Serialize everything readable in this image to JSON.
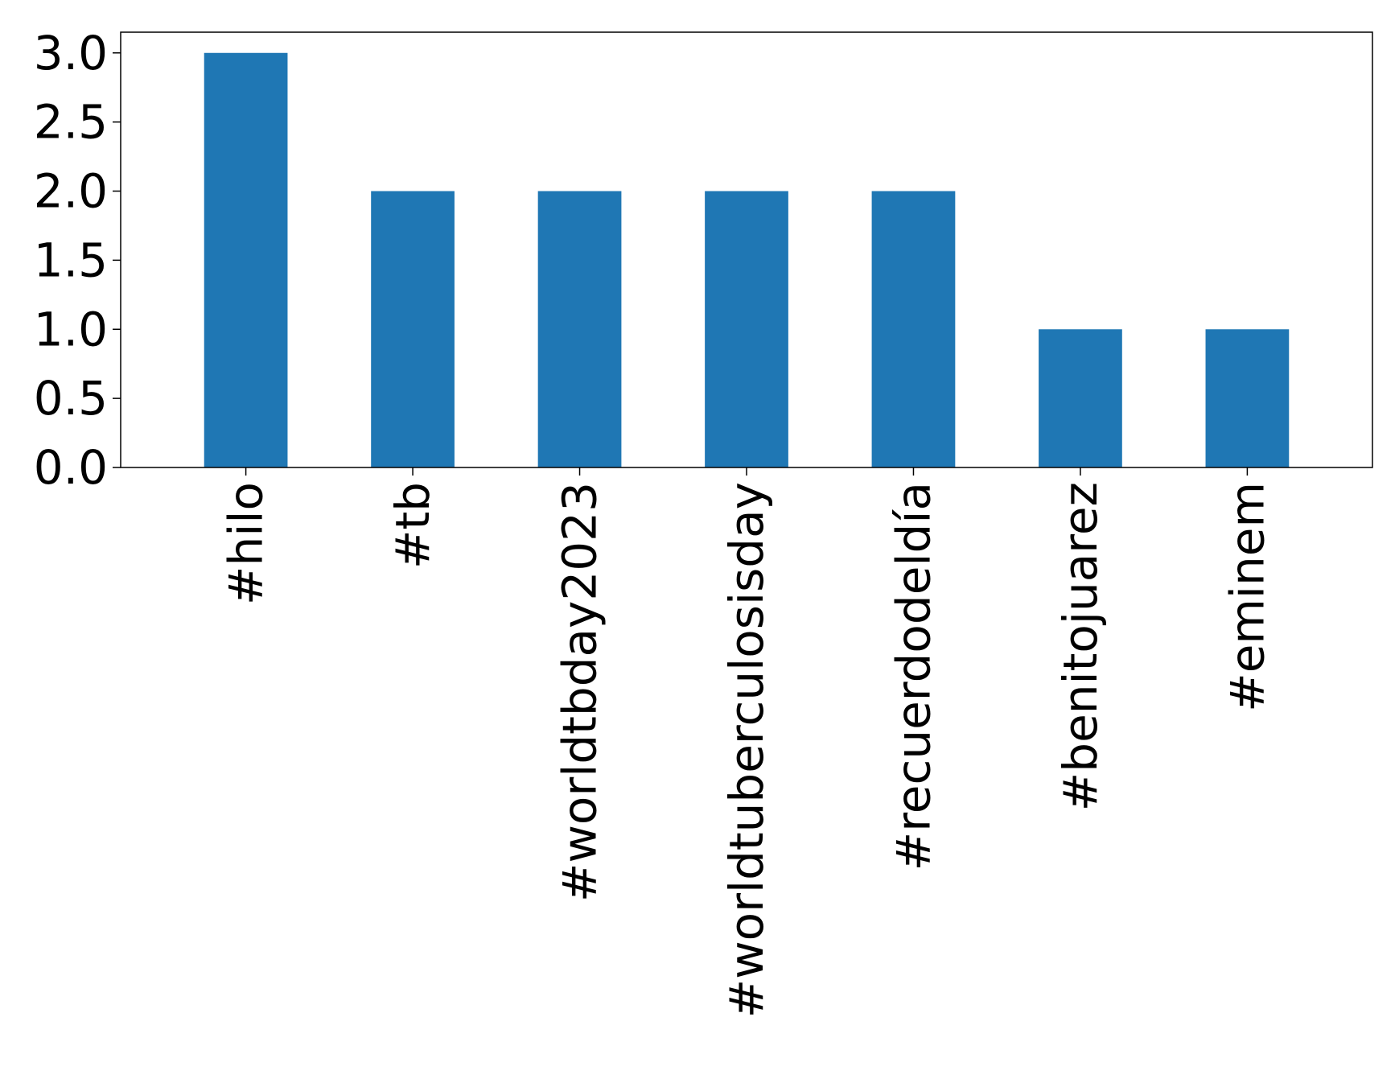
{
  "chart_data": {
    "type": "bar",
    "title": "",
    "xlabel": "",
    "ylabel": "",
    "categories": [
      "#hilo",
      "#tb",
      "#worldtbday2023",
      "#worldtuberculosisday",
      "#recuerdodeldía",
      "#benitojuarez",
      "#eminem"
    ],
    "values": [
      3,
      2,
      2,
      2,
      2,
      1,
      1
    ],
    "ylim": [
      0,
      3.15
    ],
    "yticks": [
      0.0,
      0.5,
      1.0,
      1.5,
      2.0,
      2.5,
      3.0
    ],
    "ytick_labels": [
      "0.0",
      "0.5",
      "1.0",
      "1.5",
      "2.0",
      "2.5",
      "3.0"
    ],
    "grid": false,
    "legend": "none",
    "bar_color": "#1f77b4",
    "xtick_rotation": "vertical"
  }
}
